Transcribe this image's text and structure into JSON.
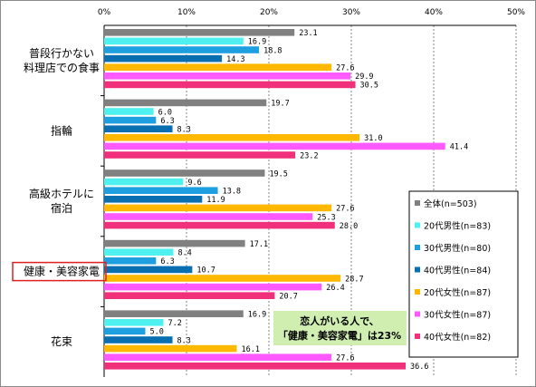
{
  "chart_data": {
    "type": "bar",
    "orientation": "horizontal",
    "xlim": [
      0,
      50
    ],
    "x_ticks": [
      "0%",
      "10%",
      "20%",
      "30%",
      "40%",
      "50%"
    ],
    "categories": [
      [
        "普段行かない",
        "料理店での食事"
      ],
      [
        "指輪"
      ],
      [
        "高級ホテルに",
        "宿泊"
      ],
      [
        "健康・美容家電"
      ],
      [
        "花束"
      ]
    ],
    "highlight_category_index": 3,
    "series": [
      {
        "name": "全体(n=503)",
        "color": "#808080",
        "values": [
          23.1,
          19.7,
          19.5,
          17.1,
          16.9
        ]
      },
      {
        "name": "20代男性(n=83)",
        "color": "#4ff0f0",
        "values": [
          16.9,
          6.0,
          9.6,
          8.4,
          7.2
        ]
      },
      {
        "name": "30代男性(n=80)",
        "color": "#1ea0e0",
        "values": [
          18.8,
          6.3,
          13.8,
          6.3,
          5.0
        ]
      },
      {
        "name": "40代男性(n=84)",
        "color": "#0a6fb0",
        "values": [
          14.3,
          8.3,
          11.9,
          10.7,
          8.3
        ]
      },
      {
        "name": "20代女性(n=87)",
        "color": "#ffb800",
        "values": [
          27.6,
          31.0,
          27.6,
          28.7,
          16.1
        ]
      },
      {
        "name": "30代女性(n=87)",
        "color": "#ff5aff",
        "values": [
          29.9,
          41.4,
          25.3,
          26.4,
          27.6
        ]
      },
      {
        "name": "40代女性(n=82)",
        "color": "#f0307a",
        "values": [
          30.5,
          23.2,
          28.0,
          20.7,
          36.6
        ]
      }
    ],
    "legend_position": "right",
    "annotation": [
      "恋人がいる人で、",
      "「健康・美容家電」は23%"
    ],
    "annotation_color": "#cfeeb0",
    "highlight_color": "#e02020"
  }
}
